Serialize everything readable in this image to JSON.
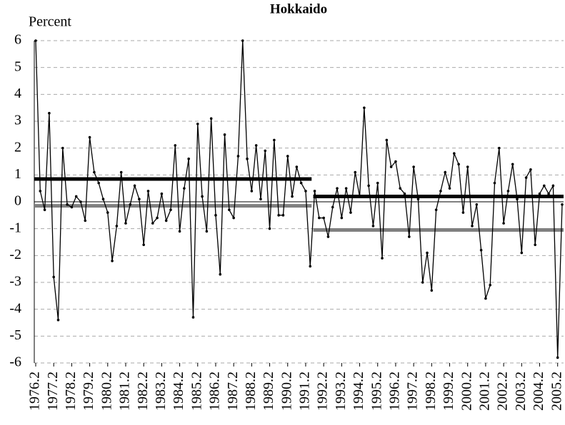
{
  "chart_data": {
    "type": "line",
    "title": "Hokkaido",
    "y_label": "Percent",
    "categories": [
      "1976.2",
      null,
      null,
      null,
      "1977.2",
      null,
      null,
      null,
      "1978.2",
      null,
      null,
      null,
      "1979.2",
      null,
      null,
      null,
      "1980.2",
      null,
      null,
      null,
      "1981.2",
      null,
      null,
      null,
      "1982.2",
      null,
      null,
      null,
      "1983.2",
      null,
      null,
      null,
      "1984.2",
      null,
      null,
      null,
      "1985.2",
      null,
      null,
      null,
      "1986.2",
      null,
      null,
      null,
      "1987.2",
      null,
      null,
      null,
      "1988.2",
      null,
      null,
      null,
      "1989.2",
      null,
      null,
      null,
      "1990.2",
      null,
      null,
      null,
      "1991.2",
      null,
      null,
      null,
      "1992.2",
      null,
      null,
      null,
      "1993.2",
      null,
      null,
      null,
      "1994.2",
      null,
      null,
      null,
      "1995.2",
      null,
      null,
      null,
      "1996.2",
      null,
      null,
      null,
      "1997.2",
      null,
      null,
      null,
      "1998.2",
      null,
      null,
      null,
      "1999.2",
      null,
      null,
      null,
      "2000.2",
      null,
      null,
      null,
      "2001.2",
      null,
      null,
      null,
      "2002.2",
      null,
      null,
      null,
      "2003.2",
      null,
      null,
      null,
      "2004.2",
      null,
      null,
      null,
      "2005.2",
      null
    ],
    "values": [
      6.0,
      0.4,
      -0.3,
      3.3,
      -2.8,
      -4.4,
      2.0,
      -0.1,
      -0.2,
      0.2,
      0.0,
      -0.7,
      2.4,
      1.1,
      0.7,
      0.1,
      -0.4,
      -2.2,
      -0.9,
      1.1,
      -0.8,
      -0.1,
      0.6,
      0.1,
      -1.6,
      0.4,
      -0.8,
      -0.6,
      0.3,
      -0.7,
      -0.3,
      2.1,
      -1.1,
      0.5,
      1.6,
      -4.3,
      2.9,
      0.2,
      -1.1,
      3.1,
      -0.5,
      -2.7,
      2.5,
      -0.3,
      -0.6,
      1.7,
      6.0,
      1.6,
      0.4,
      2.1,
      0.1,
      1.9,
      -1.0,
      2.3,
      -0.5,
      -0.5,
      1.7,
      0.2,
      1.3,
      0.7,
      0.4,
      -2.4,
      0.4,
      -0.6,
      -0.6,
      -1.3,
      -0.2,
      0.5,
      -0.6,
      0.5,
      -0.4,
      1.1,
      0.2,
      3.5,
      0.6,
      -0.9,
      0.7,
      -2.1,
      2.3,
      1.3,
      1.5,
      0.5,
      0.3,
      -1.3,
      1.3,
      0.1,
      -3.0,
      -1.9,
      -3.3,
      -0.3,
      0.4,
      1.1,
      0.5,
      1.8,
      1.4,
      -0.4,
      1.3,
      -0.9,
      -0.1,
      -1.8,
      -3.6,
      -3.1,
      0.7,
      2.0,
      -0.8,
      0.4,
      1.4,
      0.1,
      -1.9,
      0.9,
      1.2,
      -1.6,
      0.3,
      0.6,
      0.3,
      0.6,
      -5.8,
      -0.1
    ],
    "color": "#000000",
    "reference_lines": [
      {
        "value": 0.85,
        "xrange": [
          0,
          61
        ],
        "color": "#000000"
      },
      {
        "value": -0.15,
        "xrange": [
          0,
          61
        ],
        "color": "#808080"
      },
      {
        "value": 0.2,
        "xrange": [
          62,
          117
        ],
        "color": "#000000"
      },
      {
        "value": -1.05,
        "xrange": [
          62,
          117
        ],
        "color": "#808080"
      }
    ],
    "ylim": [
      -6,
      6
    ],
    "yticks": [
      -6,
      -5,
      -4,
      -3,
      -2,
      -1,
      0,
      1,
      2,
      3,
      4,
      5,
      6
    ],
    "grid": true
  }
}
